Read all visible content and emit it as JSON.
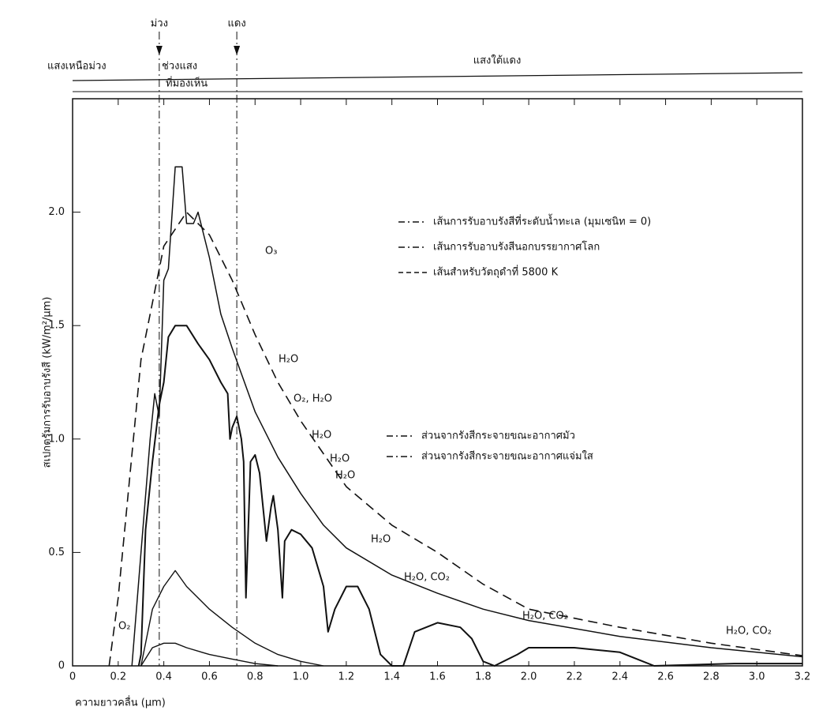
{
  "chart_data": {
    "type": "line",
    "xlabel": "ความยาวคลื่น (µm)",
    "ylabel": "สเปกตรัมการรับอาบรังสี (kW/m²/µm)",
    "xlim": [
      0,
      3.2
    ],
    "ylim": [
      0,
      2.5
    ],
    "xticks": [
      0,
      0.2,
      0.4,
      0.6,
      0.8,
      {
        "value": 1,
        "label": "1.0"
      },
      1.2,
      1.4,
      1.6,
      1.8,
      {
        "value": 2,
        "label": "2.0"
      },
      2.2,
      2.4,
      2.6,
      2.8,
      {
        "value": 3,
        "label": "3.0"
      },
      3.2
    ],
    "yticks": [
      0,
      0.5,
      {
        "value": 1,
        "label": "1.0"
      },
      1.5,
      {
        "value": 2,
        "label": "2.0"
      }
    ],
    "series": [
      {
        "name": "เส้นการรับอาบรังสีที่ระดับน้ำทะเล (มุมเซนิท = 0)",
        "color": "#111111",
        "dash": "solid",
        "x": [
          0.29,
          0.3,
          0.32,
          0.35,
          0.38,
          0.4,
          0.42,
          0.45,
          0.5,
          0.55,
          0.6,
          0.65,
          0.68,
          0.69,
          0.7,
          0.72,
          0.74,
          0.75,
          0.76,
          0.78,
          0.8,
          0.82,
          0.85,
          0.87,
          0.88,
          0.9,
          0.92,
          0.93,
          0.96,
          1.0,
          1.05,
          1.1,
          1.12,
          1.15,
          1.2,
          1.25,
          1.3,
          1.35,
          1.4,
          1.45,
          1.5,
          1.6,
          1.7,
          1.75,
          1.8,
          1.85,
          1.95,
          2.0,
          2.2,
          2.4,
          2.5,
          2.55,
          2.9,
          3.2
        ],
        "values": [
          0,
          0.05,
          0.6,
          0.9,
          1.15,
          1.25,
          1.45,
          1.5,
          1.5,
          1.42,
          1.35,
          1.25,
          1.2,
          1.0,
          1.05,
          1.1,
          1.0,
          0.9,
          0.3,
          0.9,
          0.93,
          0.85,
          0.55,
          0.7,
          0.75,
          0.6,
          0.3,
          0.55,
          0.6,
          0.58,
          0.52,
          0.35,
          0.15,
          0.25,
          0.35,
          0.35,
          0.25,
          0.05,
          0,
          0,
          0.15,
          0.19,
          0.17,
          0.12,
          0.02,
          0,
          0.05,
          0.08,
          0.08,
          0.06,
          0.02,
          0,
          0.01,
          0.01
        ]
      },
      {
        "name": "เส้นการรับอาบรังสีนอกบรรยากาศโลก",
        "color": "#111111",
        "dash": "solid",
        "x": [
          0.26,
          0.3,
          0.34,
          0.36,
          0.38,
          0.4,
          0.42,
          0.45,
          0.48,
          0.5,
          0.53,
          0.55,
          0.6,
          0.65,
          0.7,
          0.8,
          0.9,
          1.0,
          1.1,
          1.2,
          1.4,
          1.6,
          1.8,
          2.0,
          2.4,
          2.8,
          3.2
        ],
        "values": [
          0,
          0.5,
          1.0,
          1.2,
          1.1,
          1.7,
          1.75,
          2.2,
          2.2,
          1.95,
          1.95,
          2.0,
          1.8,
          1.55,
          1.4,
          1.12,
          0.92,
          0.76,
          0.62,
          0.52,
          0.4,
          0.32,
          0.25,
          0.2,
          0.13,
          0.08,
          0.04
        ]
      },
      {
        "name": "เส้นสำหรับวัตถุดำที่ 5800 K",
        "color": "#111111",
        "dash": "dashed",
        "x": [
          0.16,
          0.2,
          0.3,
          0.4,
          0.5,
          0.6,
          0.7,
          0.8,
          0.9,
          1.0,
          1.2,
          1.4,
          1.6,
          1.8,
          2.0,
          2.4,
          2.8,
          3.2
        ],
        "values": [
          0,
          0.3,
          1.35,
          1.85,
          2.0,
          1.9,
          1.7,
          1.46,
          1.25,
          1.08,
          0.79,
          0.62,
          0.5,
          0.36,
          0.25,
          0.17,
          0.1,
          0.045
        ]
      },
      {
        "name": "ส่วนจากรังสีกระจายขณะอากาศมัว",
        "color": "#111111",
        "dash": "solid",
        "x": [
          0.3,
          0.35,
          0.4,
          0.45,
          0.5,
          0.6,
          0.7,
          0.8,
          0.9,
          1.0,
          1.1
        ],
        "values": [
          0,
          0.25,
          0.35,
          0.42,
          0.35,
          0.25,
          0.17,
          0.1,
          0.05,
          0.02,
          0
        ]
      },
      {
        "name": "ส่วนจากรังสีกระจายขณะอากาศแจ่มใส",
        "color": "#111111",
        "dash": "solid",
        "x": [
          0.3,
          0.35,
          0.4,
          0.45,
          0.5,
          0.6,
          0.7,
          0.8,
          0.9
        ],
        "values": [
          0,
          0.08,
          0.1,
          0.1,
          0.08,
          0.05,
          0.03,
          0.01,
          0
        ]
      }
    ],
    "markers": [
      {
        "label": "ม่วง",
        "value": 0.38
      },
      {
        "label": "แดง",
        "value": 0.72
      }
    ],
    "regions": [
      "แสงเหนือม่วง",
      "ช่วงแสง",
      "ที่มองเห็น",
      "แสงใต้แดง"
    ],
    "annotations": [
      "O₃",
      "H₂O",
      "O₂, H₂O",
      "H₂O",
      "H₂O",
      "H₂O",
      "H₂O",
      "H₂O, CO₂",
      "H₂O, CO₂",
      "H₂O, CO₂",
      "O₂"
    ]
  }
}
